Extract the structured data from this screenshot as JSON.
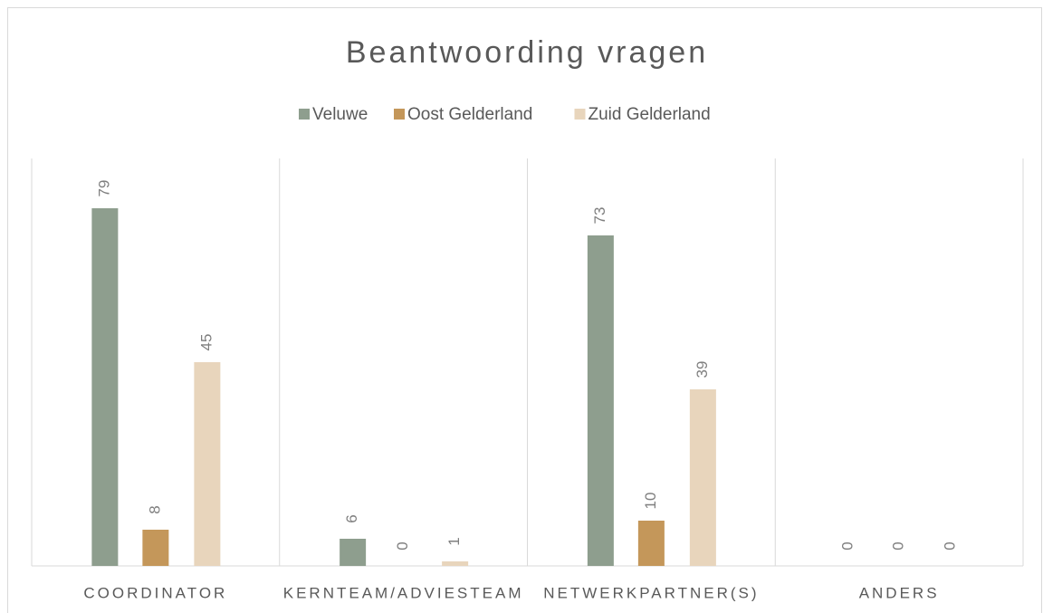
{
  "chart_data": {
    "type": "bar",
    "title": "Beantwoording vragen",
    "categories": [
      "COORDINATOR",
      "KERNTEAM/ADVIESTEAM",
      "NETWERKPARTNER(S)",
      "ANDERS"
    ],
    "series": [
      {
        "name": "Veluwe",
        "color": "#8e9e8e",
        "values": [
          79,
          6,
          73,
          0
        ]
      },
      {
        "name": "Oost Gelderland",
        "color": "#c4975a",
        "values": [
          8,
          0,
          10,
          0
        ]
      },
      {
        "name": "Zuid Gelderland",
        "color": "#e8d5bc",
        "values": [
          45,
          1,
          39,
          0
        ]
      }
    ],
    "ylim": [
      0,
      90
    ],
    "legend": "top"
  }
}
